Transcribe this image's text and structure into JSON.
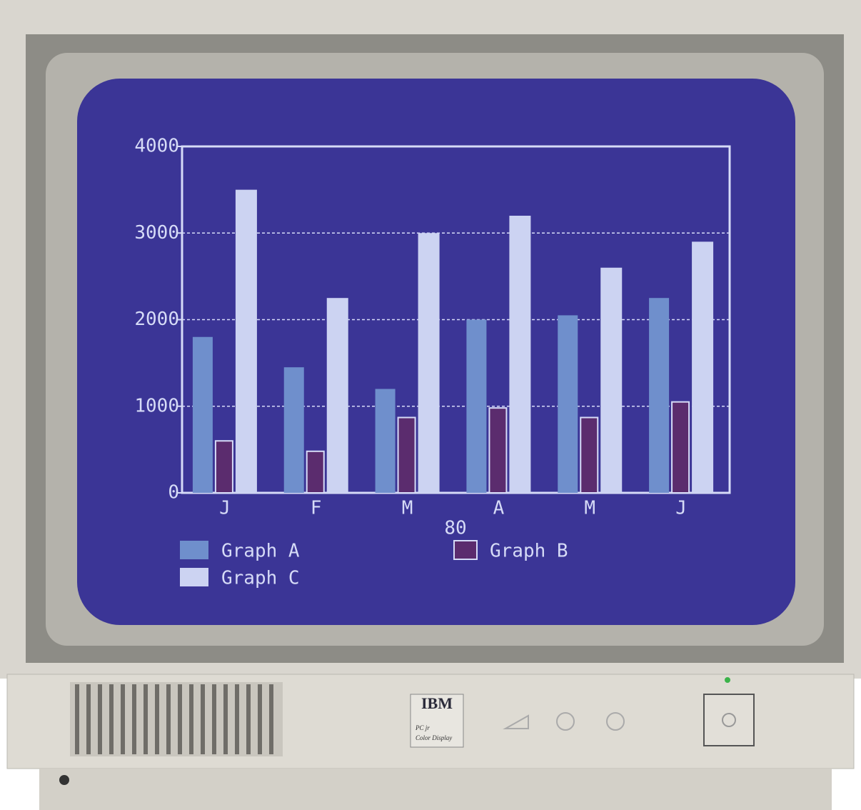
{
  "chart_data": {
    "type": "bar",
    "x_label": "80",
    "categories": [
      "J",
      "F",
      "M",
      "A",
      "M",
      "J"
    ],
    "series": [
      {
        "name": "Graph A",
        "color": "#6f8fcc",
        "values": [
          1800,
          1450,
          1200,
          2000,
          2050,
          2250
        ]
      },
      {
        "name": "Graph B",
        "color": "#5b2c6e",
        "values": [
          600,
          480,
          870,
          980,
          870,
          1050
        ]
      },
      {
        "name": "Graph C",
        "color": "#ccd3f2",
        "values": [
          3500,
          2250,
          3000,
          3200,
          2600,
          2900
        ]
      }
    ],
    "ylim": [
      0,
      4000
    ],
    "yticks": [
      0,
      1000,
      2000,
      3000,
      4000
    ],
    "grid": true
  },
  "monitor": {
    "brand": "IBM",
    "model": "PC jr",
    "label": "Color Display"
  }
}
